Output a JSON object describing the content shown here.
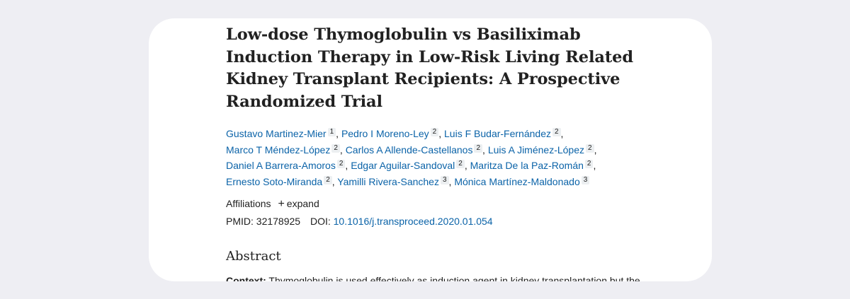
{
  "article": {
    "title": "Low-dose Thymoglobulin vs Basiliximab Induction Therapy in Low-Risk Living Related Kidney Transplant Recipients: A Prospective Randomized Trial",
    "authors": [
      {
        "name": "Gustavo Martinez-Mier",
        "aff": "1"
      },
      {
        "name": "Pedro I Moreno-Ley",
        "aff": "2"
      },
      {
        "name": "Luis F Budar-Fernández",
        "aff": "2"
      },
      {
        "name": "Marco T Méndez-López",
        "aff": "2"
      },
      {
        "name": "Carlos A Allende-Castellanos",
        "aff": "2"
      },
      {
        "name": "Luis A Jiménez-López",
        "aff": "2"
      },
      {
        "name": "Daniel A Barrera-Amoros",
        "aff": "2"
      },
      {
        "name": "Edgar Aguilar-Sandoval",
        "aff": "2"
      },
      {
        "name": "Maritza De la Paz-Román",
        "aff": "2"
      },
      {
        "name": "Ernesto Soto-Miranda",
        "aff": "2"
      },
      {
        "name": "Yamilli Rivera-Sanchez",
        "aff": "3"
      },
      {
        "name": "Mónica Martínez-Maldonado",
        "aff": "3"
      }
    ],
    "affiliations_label": "Affiliations",
    "expand_label": "expand",
    "pmid_label": "PMID:",
    "pmid": "32178925",
    "doi_label": "DOI:",
    "doi": "10.1016/j.transproceed.2020.01.054",
    "abstract_heading": "Abstract",
    "context_label": "Context:",
    "context_text": "Thymoglobulin is used effectively as induction agent in kidney transplantation but the"
  },
  "colors": {
    "link": "#0b63a8",
    "text": "#212121",
    "background": "#eeeef3",
    "card": "#ffffff"
  }
}
